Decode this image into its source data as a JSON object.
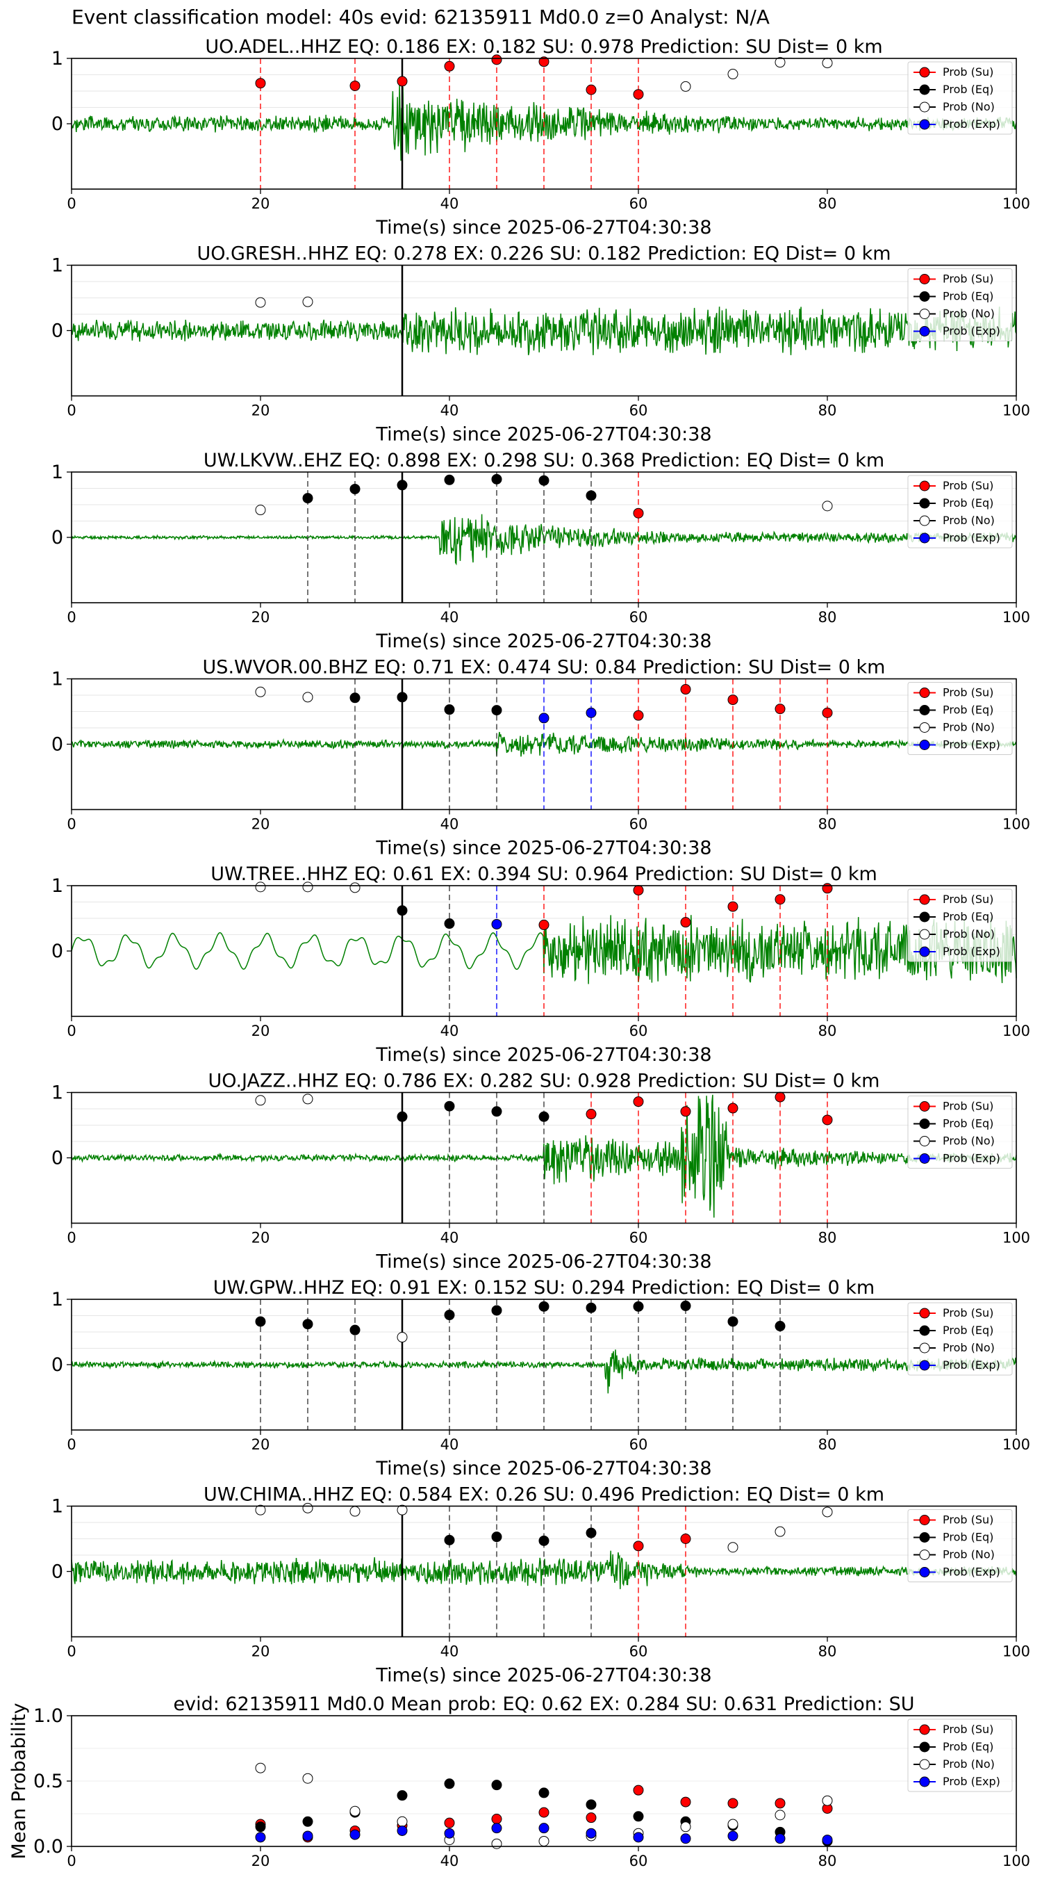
{
  "figure": {
    "suptitle": "Event classification model: 40s evid: 62135911 Md0.0 z=0 Analyst: N/A",
    "xlabel": "Time(s) since 2025-06-27T04:30:38"
  },
  "legend": {
    "entries": [
      {
        "label": "Prob (Su)",
        "color": "#ff0000",
        "face": "#ff0000"
      },
      {
        "label": "Prob (Eq)",
        "color": "#000000",
        "face": "#000000"
      },
      {
        "label": "Prob (No)",
        "color": "#000000",
        "face": "#ffffff"
      },
      {
        "label": "Prob (Exp)",
        "color": "#0000ff",
        "face": "#0000ff"
      }
    ]
  },
  "colors": {
    "su": "#ff0000",
    "eq": "#000000",
    "no": "#ffffff",
    "exp": "#0000ff",
    "waveform": "#008000",
    "origin_line": "#000000"
  },
  "chart_data": [
    {
      "type": "scatter",
      "title": "UO.ADEL..HHZ   EQ: 0.186  EX: 0.182  SU: 0.978   Prediction: SU    Dist= 0 km",
      "xlabel": "Time(s) since 2025-06-27T04:30:38",
      "xlim": [
        0,
        100
      ],
      "ylim": [
        -1,
        1
      ],
      "xticks": [
        "0",
        "20",
        "40",
        "60",
        "80",
        "100"
      ],
      "yticks": [
        "0",
        "1"
      ],
      "origin_time": 35,
      "waveform": {
        "onset": 34,
        "pre_amp": 0.1,
        "post_amp": 0.45,
        "decay": 25,
        "seed": 3
      },
      "points": [
        {
          "x": 20,
          "y": 0.62,
          "cls": "su"
        },
        {
          "x": 30,
          "y": 0.58,
          "cls": "su"
        },
        {
          "x": 35,
          "y": 0.65,
          "cls": "su"
        },
        {
          "x": 40,
          "y": 0.88,
          "cls": "su"
        },
        {
          "x": 45,
          "y": 0.98,
          "cls": "su"
        },
        {
          "x": 50,
          "y": 0.95,
          "cls": "su"
        },
        {
          "x": 55,
          "y": 0.52,
          "cls": "su"
        },
        {
          "x": 60,
          "y": 0.45,
          "cls": "su"
        },
        {
          "x": 65,
          "y": 0.57,
          "cls": "no"
        },
        {
          "x": 70,
          "y": 0.76,
          "cls": "no"
        },
        {
          "x": 75,
          "y": 0.94,
          "cls": "no"
        },
        {
          "x": 80,
          "y": 0.93,
          "cls": "no"
        }
      ],
      "vlines": [
        {
          "x": 20,
          "cls": "su"
        },
        {
          "x": 30,
          "cls": "su"
        },
        {
          "x": 40,
          "cls": "su"
        },
        {
          "x": 45,
          "cls": "su"
        },
        {
          "x": 50,
          "cls": "su"
        },
        {
          "x": 55,
          "cls": "su"
        },
        {
          "x": 60,
          "cls": "su"
        }
      ]
    },
    {
      "type": "scatter",
      "title": "UO.GRESH..HHZ   EQ: 0.278  EX: 0.226  SU: 0.182   Prediction: EQ    Dist= 0 km",
      "xlabel": "Time(s) since 2025-06-27T04:30:38",
      "xlim": [
        0,
        100
      ],
      "ylim": [
        -1,
        1
      ],
      "xticks": [
        "0",
        "20",
        "40",
        "60",
        "80",
        "100"
      ],
      "yticks": [
        "0",
        "1"
      ],
      "origin_time": 35,
      "waveform": {
        "onset": 35,
        "pre_amp": 0.13,
        "post_amp": 0.28,
        "decay": 0,
        "seed": 7
      },
      "points": [
        {
          "x": 20,
          "y": 0.43,
          "cls": "no"
        },
        {
          "x": 25,
          "y": 0.44,
          "cls": "no"
        }
      ],
      "vlines": []
    },
    {
      "type": "scatter",
      "title": "UW.LKVW..EHZ   EQ: 0.898  EX: 0.298  SU: 0.368   Prediction: EQ    Dist= 0 km",
      "xlabel": "Time(s) since 2025-06-27T04:30:38",
      "xlim": [
        0,
        100
      ],
      "ylim": [
        -1,
        1
      ],
      "xticks": [
        "0",
        "20",
        "40",
        "60",
        "80",
        "100"
      ],
      "yticks": [
        "0",
        "1"
      ],
      "origin_time": 35,
      "waveform": {
        "onset": 39,
        "pre_amp": 0.02,
        "post_amp": 0.35,
        "decay": 15,
        "seed": 11
      },
      "points": [
        {
          "x": 20,
          "y": 0.42,
          "cls": "no"
        },
        {
          "x": 25,
          "y": 0.6,
          "cls": "eq"
        },
        {
          "x": 30,
          "y": 0.74,
          "cls": "eq"
        },
        {
          "x": 35,
          "y": 0.8,
          "cls": "eq"
        },
        {
          "x": 40,
          "y": 0.88,
          "cls": "eq"
        },
        {
          "x": 45,
          "y": 0.89,
          "cls": "eq"
        },
        {
          "x": 50,
          "y": 0.87,
          "cls": "eq"
        },
        {
          "x": 55,
          "y": 0.64,
          "cls": "eq"
        },
        {
          "x": 60,
          "y": 0.37,
          "cls": "su"
        },
        {
          "x": 80,
          "y": 0.48,
          "cls": "no"
        }
      ],
      "vlines": [
        {
          "x": 25,
          "cls": "eq"
        },
        {
          "x": 30,
          "cls": "eq"
        },
        {
          "x": 45,
          "cls": "eq"
        },
        {
          "x": 50,
          "cls": "eq"
        },
        {
          "x": 55,
          "cls": "eq"
        },
        {
          "x": 60,
          "cls": "su"
        }
      ]
    },
    {
      "type": "scatter",
      "title": "US.WVOR.00.BHZ   EQ: 0.71  EX: 0.474  SU: 0.84   Prediction: SU    Dist= 0 km",
      "xlabel": "Time(s) since 2025-06-27T04:30:38",
      "xlim": [
        0,
        100
      ],
      "ylim": [
        -1,
        1
      ],
      "xticks": [
        "0",
        "20",
        "40",
        "60",
        "80",
        "100"
      ],
      "yticks": [
        "0",
        "1"
      ],
      "origin_time": 35,
      "waveform": {
        "onset": 45,
        "pre_amp": 0.05,
        "post_amp": 0.18,
        "decay": 30,
        "seed": 5
      },
      "points": [
        {
          "x": 20,
          "y": 0.8,
          "cls": "no"
        },
        {
          "x": 25,
          "y": 0.72,
          "cls": "no"
        },
        {
          "x": 30,
          "y": 0.71,
          "cls": "eq"
        },
        {
          "x": 35,
          "y": 0.72,
          "cls": "eq"
        },
        {
          "x": 40,
          "y": 0.53,
          "cls": "eq"
        },
        {
          "x": 45,
          "y": 0.52,
          "cls": "eq"
        },
        {
          "x": 50,
          "y": 0.4,
          "cls": "exp"
        },
        {
          "x": 55,
          "y": 0.48,
          "cls": "exp"
        },
        {
          "x": 60,
          "y": 0.44,
          "cls": "su"
        },
        {
          "x": 65,
          "y": 0.84,
          "cls": "su"
        },
        {
          "x": 70,
          "y": 0.68,
          "cls": "su"
        },
        {
          "x": 75,
          "y": 0.54,
          "cls": "su"
        },
        {
          "x": 80,
          "y": 0.48,
          "cls": "su"
        }
      ],
      "vlines": [
        {
          "x": 30,
          "cls": "eq"
        },
        {
          "x": 40,
          "cls": "eq"
        },
        {
          "x": 45,
          "cls": "eq"
        },
        {
          "x": 50,
          "cls": "exp"
        },
        {
          "x": 55,
          "cls": "exp"
        },
        {
          "x": 60,
          "cls": "su"
        },
        {
          "x": 65,
          "cls": "su"
        },
        {
          "x": 70,
          "cls": "su"
        },
        {
          "x": 75,
          "cls": "su"
        },
        {
          "x": 80,
          "cls": "su"
        }
      ]
    },
    {
      "type": "scatter",
      "title": "UW.TREE..HHZ   EQ: 0.61  EX: 0.394  SU: 0.964   Prediction: SU    Dist= 0 km",
      "xlabel": "Time(s) since 2025-06-27T04:30:38",
      "xlim": [
        0,
        100
      ],
      "ylim": [
        -1,
        1
      ],
      "xticks": [
        "0",
        "20",
        "40",
        "60",
        "80",
        "100"
      ],
      "yticks": [
        "0",
        "1"
      ],
      "origin_time": 35,
      "waveform": {
        "onset": 50,
        "pre_amp": 0.25,
        "post_amp": 0.4,
        "decay": 0,
        "seed": 13,
        "pre_wave": true
      },
      "points": [
        {
          "x": 20,
          "y": 0.98,
          "cls": "no"
        },
        {
          "x": 25,
          "y": 0.98,
          "cls": "no"
        },
        {
          "x": 30,
          "y": 0.97,
          "cls": "no"
        },
        {
          "x": 35,
          "y": 0.62,
          "cls": "eq"
        },
        {
          "x": 40,
          "y": 0.42,
          "cls": "eq"
        },
        {
          "x": 45,
          "y": 0.41,
          "cls": "exp"
        },
        {
          "x": 50,
          "y": 0.4,
          "cls": "su"
        },
        {
          "x": 60,
          "y": 0.93,
          "cls": "su"
        },
        {
          "x": 65,
          "y": 0.44,
          "cls": "su"
        },
        {
          "x": 70,
          "y": 0.68,
          "cls": "su"
        },
        {
          "x": 75,
          "y": 0.79,
          "cls": "su"
        },
        {
          "x": 80,
          "y": 0.96,
          "cls": "su"
        }
      ],
      "vlines": [
        {
          "x": 40,
          "cls": "eq"
        },
        {
          "x": 45,
          "cls": "exp"
        },
        {
          "x": 50,
          "cls": "su"
        },
        {
          "x": 60,
          "cls": "su"
        },
        {
          "x": 65,
          "cls": "su"
        },
        {
          "x": 70,
          "cls": "su"
        },
        {
          "x": 75,
          "cls": "su"
        },
        {
          "x": 80,
          "cls": "su"
        }
      ]
    },
    {
      "type": "scatter",
      "title": "UO.JAZZ..HHZ   EQ: 0.786  EX: 0.282  SU: 0.928   Prediction: SU    Dist= 0 km",
      "xlabel": "Time(s) since 2025-06-27T04:30:38",
      "xlim": [
        0,
        100
      ],
      "ylim": [
        -1,
        1
      ],
      "xticks": [
        "0",
        "20",
        "40",
        "60",
        "80",
        "100"
      ],
      "yticks": [
        "0",
        "1"
      ],
      "origin_time": 35,
      "waveform": {
        "onset": 50,
        "pre_amp": 0.04,
        "post_amp": 0.35,
        "decay": 25,
        "seed": 17,
        "burst": 67
      },
      "points": [
        {
          "x": 20,
          "y": 0.88,
          "cls": "no"
        },
        {
          "x": 25,
          "y": 0.9,
          "cls": "no"
        },
        {
          "x": 35,
          "y": 0.63,
          "cls": "eq"
        },
        {
          "x": 40,
          "y": 0.79,
          "cls": "eq"
        },
        {
          "x": 45,
          "y": 0.71,
          "cls": "eq"
        },
        {
          "x": 50,
          "y": 0.63,
          "cls": "eq"
        },
        {
          "x": 55,
          "y": 0.67,
          "cls": "su"
        },
        {
          "x": 60,
          "y": 0.86,
          "cls": "su"
        },
        {
          "x": 65,
          "y": 0.71,
          "cls": "su"
        },
        {
          "x": 70,
          "y": 0.76,
          "cls": "su"
        },
        {
          "x": 75,
          "y": 0.93,
          "cls": "su"
        },
        {
          "x": 80,
          "y": 0.58,
          "cls": "su"
        }
      ],
      "vlines": [
        {
          "x": 40,
          "cls": "eq"
        },
        {
          "x": 45,
          "cls": "eq"
        },
        {
          "x": 50,
          "cls": "eq"
        },
        {
          "x": 55,
          "cls": "su"
        },
        {
          "x": 60,
          "cls": "su"
        },
        {
          "x": 65,
          "cls": "su"
        },
        {
          "x": 70,
          "cls": "su"
        },
        {
          "x": 75,
          "cls": "su"
        },
        {
          "x": 80,
          "cls": "su"
        }
      ]
    },
    {
      "type": "scatter",
      "title": "UW.GPW..HHZ   EQ: 0.91  EX: 0.152  SU: 0.294   Prediction: EQ    Dist= 0 km",
      "xlabel": "Time(s) since 2025-06-27T04:30:38",
      "xlim": [
        0,
        100
      ],
      "ylim": [
        -1,
        1
      ],
      "xticks": [
        "0",
        "20",
        "40",
        "60",
        "80",
        "100"
      ],
      "yticks": [
        "0",
        "1"
      ],
      "origin_time": 35,
      "waveform": {
        "onset": 56.5,
        "pre_amp": 0.04,
        "post_amp": 0.45,
        "decay": 2.5,
        "seed": 19
      },
      "points": [
        {
          "x": 20,
          "y": 0.66,
          "cls": "eq"
        },
        {
          "x": 25,
          "y": 0.62,
          "cls": "eq"
        },
        {
          "x": 30,
          "y": 0.53,
          "cls": "eq"
        },
        {
          "x": 35,
          "y": 0.42,
          "cls": "no"
        },
        {
          "x": 40,
          "y": 0.76,
          "cls": "eq"
        },
        {
          "x": 45,
          "y": 0.83,
          "cls": "eq"
        },
        {
          "x": 50,
          "y": 0.89,
          "cls": "eq"
        },
        {
          "x": 55,
          "y": 0.87,
          "cls": "eq"
        },
        {
          "x": 60,
          "y": 0.89,
          "cls": "eq"
        },
        {
          "x": 65,
          "y": 0.9,
          "cls": "eq"
        },
        {
          "x": 70,
          "y": 0.66,
          "cls": "eq"
        },
        {
          "x": 75,
          "y": 0.59,
          "cls": "eq"
        }
      ],
      "vlines": [
        {
          "x": 20,
          "cls": "eq"
        },
        {
          "x": 25,
          "cls": "eq"
        },
        {
          "x": 30,
          "cls": "eq"
        },
        {
          "x": 40,
          "cls": "eq"
        },
        {
          "x": 45,
          "cls": "eq"
        },
        {
          "x": 50,
          "cls": "eq"
        },
        {
          "x": 55,
          "cls": "eq"
        },
        {
          "x": 60,
          "cls": "eq"
        },
        {
          "x": 65,
          "cls": "eq"
        },
        {
          "x": 70,
          "cls": "eq"
        },
        {
          "x": 75,
          "cls": "eq"
        }
      ]
    },
    {
      "type": "scatter",
      "title": "UW.CHIMA..HHZ   EQ: 0.584  EX: 0.26  SU: 0.496   Prediction: EQ    Dist= 0 km",
      "xlabel": "Time(s) since 2025-06-27T04:30:38",
      "xlim": [
        0,
        100
      ],
      "ylim": [
        -1,
        1
      ],
      "xticks": [
        "0",
        "20",
        "40",
        "60",
        "80",
        "100"
      ],
      "yticks": [
        "0",
        "1"
      ],
      "origin_time": 35,
      "waveform": {
        "onset": 57,
        "pre_amp": 0.16,
        "post_amp": 0.32,
        "decay": 6,
        "seed": 23
      },
      "points": [
        {
          "x": 20,
          "y": 0.94,
          "cls": "no"
        },
        {
          "x": 25,
          "y": 0.97,
          "cls": "no"
        },
        {
          "x": 30,
          "y": 0.92,
          "cls": "no"
        },
        {
          "x": 35,
          "y": 0.94,
          "cls": "no"
        },
        {
          "x": 40,
          "y": 0.48,
          "cls": "eq"
        },
        {
          "x": 45,
          "y": 0.53,
          "cls": "eq"
        },
        {
          "x": 50,
          "y": 0.47,
          "cls": "eq"
        },
        {
          "x": 55,
          "y": 0.59,
          "cls": "eq"
        },
        {
          "x": 60,
          "y": 0.39,
          "cls": "su"
        },
        {
          "x": 65,
          "y": 0.5,
          "cls": "su"
        },
        {
          "x": 70,
          "y": 0.37,
          "cls": "no"
        },
        {
          "x": 75,
          "y": 0.61,
          "cls": "no"
        },
        {
          "x": 80,
          "y": 0.91,
          "cls": "no"
        }
      ],
      "vlines": [
        {
          "x": 40,
          "cls": "eq"
        },
        {
          "x": 45,
          "cls": "eq"
        },
        {
          "x": 50,
          "cls": "eq"
        },
        {
          "x": 55,
          "cls": "eq"
        },
        {
          "x": 60,
          "cls": "su"
        },
        {
          "x": 65,
          "cls": "su"
        }
      ]
    },
    {
      "type": "scatter",
      "title": "evid: 62135911  Md0.0   Mean prob:    EQ: 0.62  EX: 0.284  SU: 0.631   Prediction: SU",
      "xlabel": "",
      "ylabel": "Mean Probability",
      "xlim": [
        0,
        100
      ],
      "ylim": [
        0,
        1
      ],
      "xticks": [
        "0",
        "20",
        "40",
        "60",
        "80",
        "100"
      ],
      "yticks": [
        "0.0",
        "0.5",
        "1.0"
      ],
      "series": [
        {
          "name": "Prob (Su)",
          "cls": "su",
          "x": [
            20,
            25,
            30,
            35,
            40,
            45,
            50,
            55,
            60,
            65,
            70,
            75,
            80
          ],
          "y": [
            0.17,
            0.07,
            0.12,
            0.16,
            0.18,
            0.21,
            0.26,
            0.22,
            0.43,
            0.34,
            0.33,
            0.33,
            0.29
          ]
        },
        {
          "name": "Prob (Eq)",
          "cls": "eq",
          "x": [
            20,
            25,
            30,
            35,
            40,
            45,
            50,
            55,
            60,
            65,
            70,
            75,
            80
          ],
          "y": [
            0.15,
            0.19,
            0.26,
            0.39,
            0.48,
            0.47,
            0.41,
            0.32,
            0.23,
            0.19,
            0.16,
            0.11,
            0.04
          ]
        },
        {
          "name": "Prob (No)",
          "cls": "no",
          "x": [
            20,
            25,
            30,
            35,
            40,
            45,
            50,
            55,
            60,
            65,
            70,
            75,
            80
          ],
          "y": [
            0.6,
            0.52,
            0.27,
            0.19,
            0.05,
            0.02,
            0.04,
            0.08,
            0.1,
            0.15,
            0.17,
            0.24,
            0.35
          ]
        },
        {
          "name": "Prob (Exp)",
          "cls": "exp",
          "x": [
            20,
            25,
            30,
            35,
            40,
            45,
            50,
            55,
            60,
            65,
            70,
            75,
            80
          ],
          "y": [
            0.07,
            0.08,
            0.09,
            0.12,
            0.1,
            0.14,
            0.14,
            0.1,
            0.07,
            0.06,
            0.08,
            0.06,
            0.05
          ]
        }
      ]
    }
  ]
}
